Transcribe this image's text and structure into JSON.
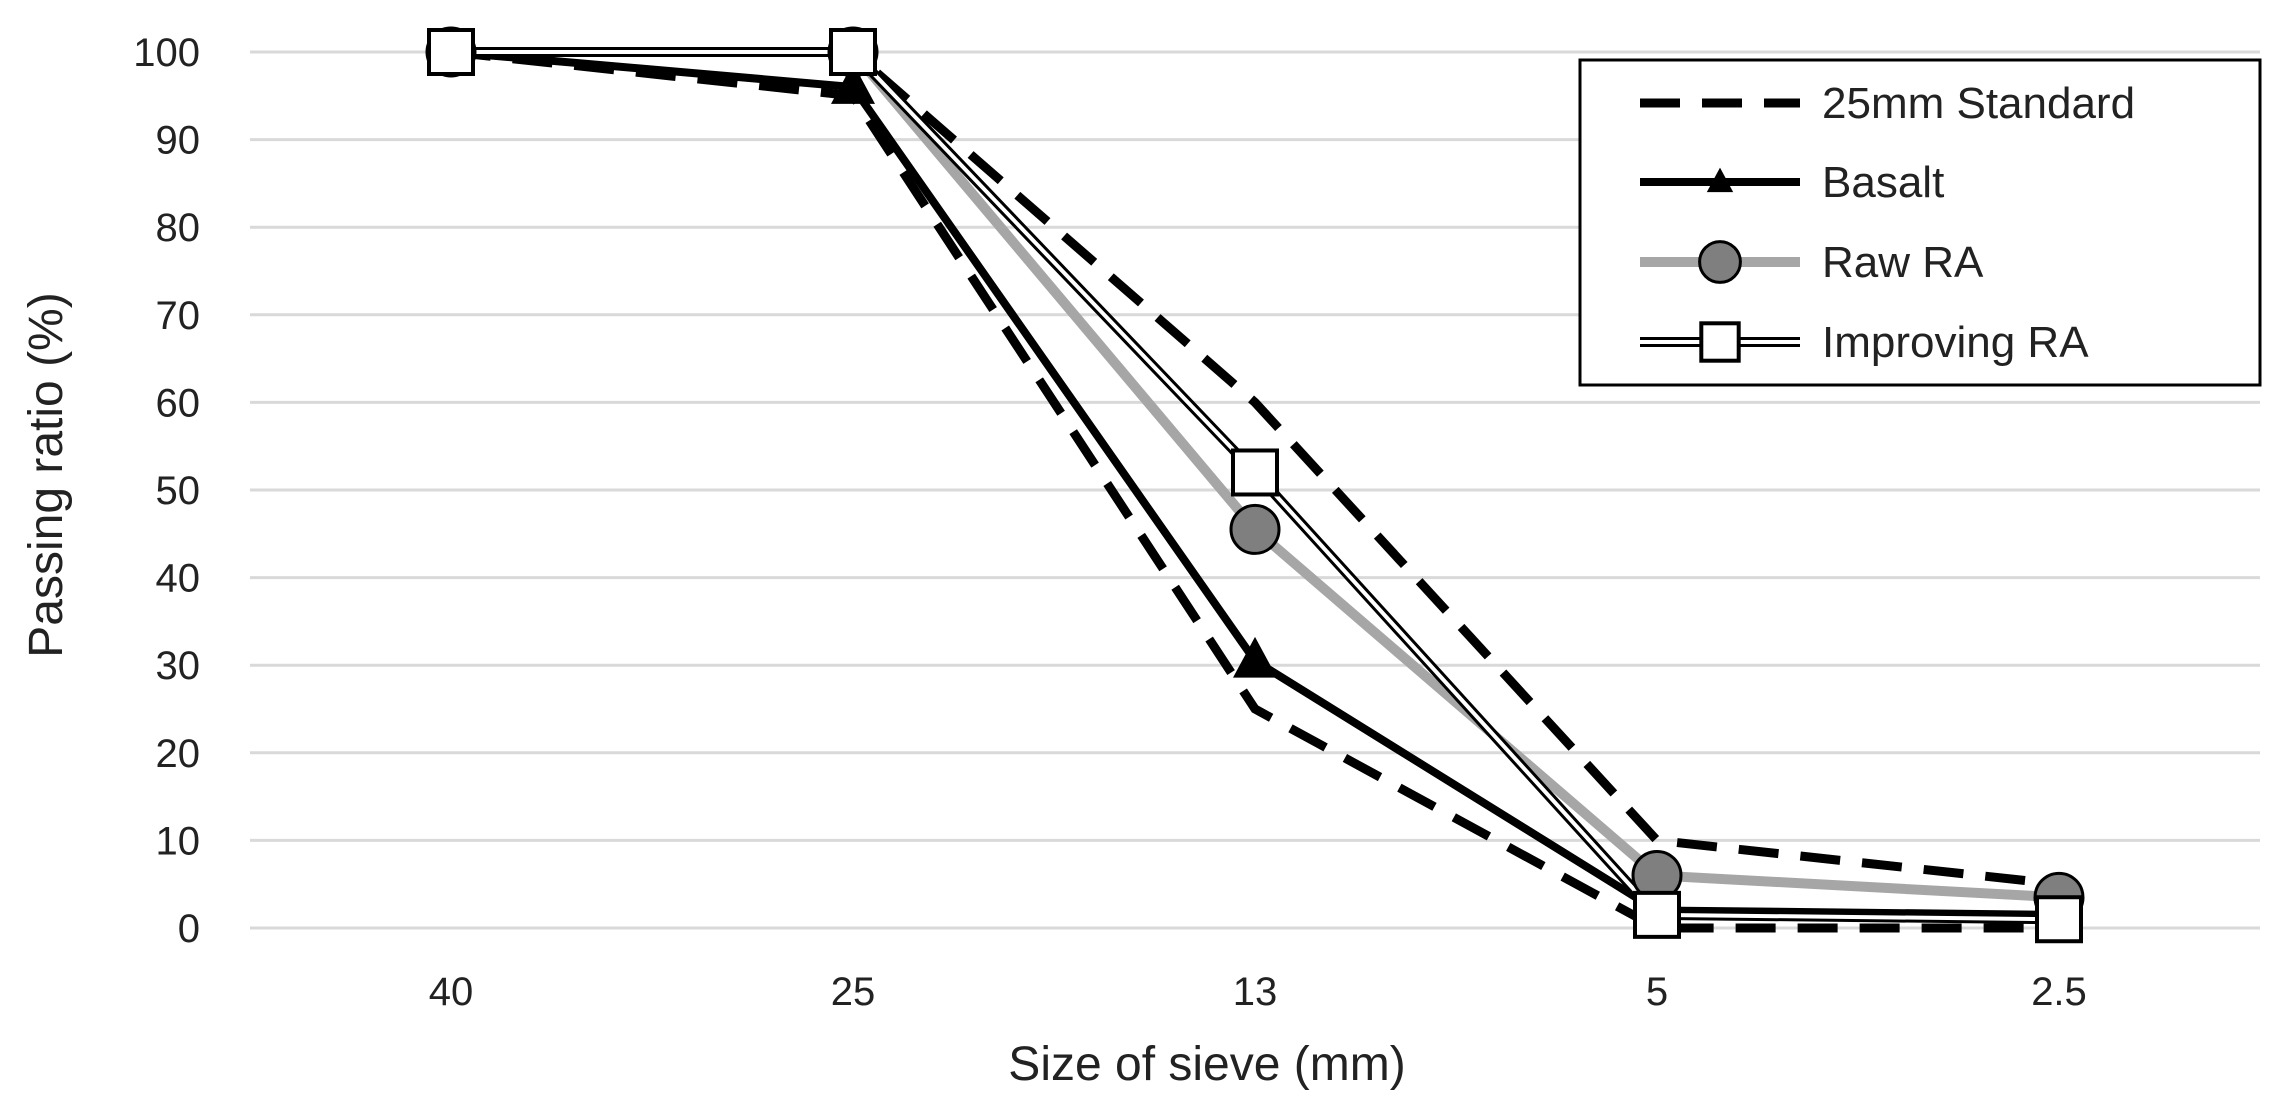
{
  "chart_data": {
    "type": "line",
    "title": "",
    "xlabel": "Size of sieve (mm)",
    "ylabel": "Passing ratio (%)",
    "categories": [
      "40",
      "25",
      "13",
      "5",
      "2.5"
    ],
    "ylim": [
      0,
      100
    ],
    "yticks": [
      "0",
      "10",
      "20",
      "30",
      "40",
      "50",
      "60",
      "70",
      "80",
      "90",
      "100"
    ],
    "grid": true,
    "legend_position": "top-right",
    "series": [
      {
        "name": "25mm Standard",
        "style": "dashed-lower",
        "color": "#000000",
        "values": [
          100,
          95,
          25,
          0,
          0
        ]
      },
      {
        "name": "25mm Standard",
        "style": "dashed-upper",
        "color": "#000000",
        "values": [
          100,
          100,
          60,
          10,
          5
        ]
      },
      {
        "name": "Basalt",
        "style": "triangle",
        "color": "#000000",
        "values": [
          100,
          96,
          30.5,
          2,
          1.5
        ]
      },
      {
        "name": "Raw RA",
        "style": "circle",
        "color": "#a6a6a6",
        "values": [
          100,
          100,
          45.5,
          6,
          3.5
        ]
      },
      {
        "name": "Improving RA",
        "style": "square",
        "color": "#ffffff",
        "values": [
          100,
          100,
          52,
          1.5,
          1
        ]
      }
    ],
    "legend": [
      {
        "label": "25mm Standard",
        "style": "dashed"
      },
      {
        "label": "Basalt",
        "style": "triangle"
      },
      {
        "label": "Raw RA",
        "style": "circle"
      },
      {
        "label": "Improving RA",
        "style": "square"
      }
    ]
  }
}
